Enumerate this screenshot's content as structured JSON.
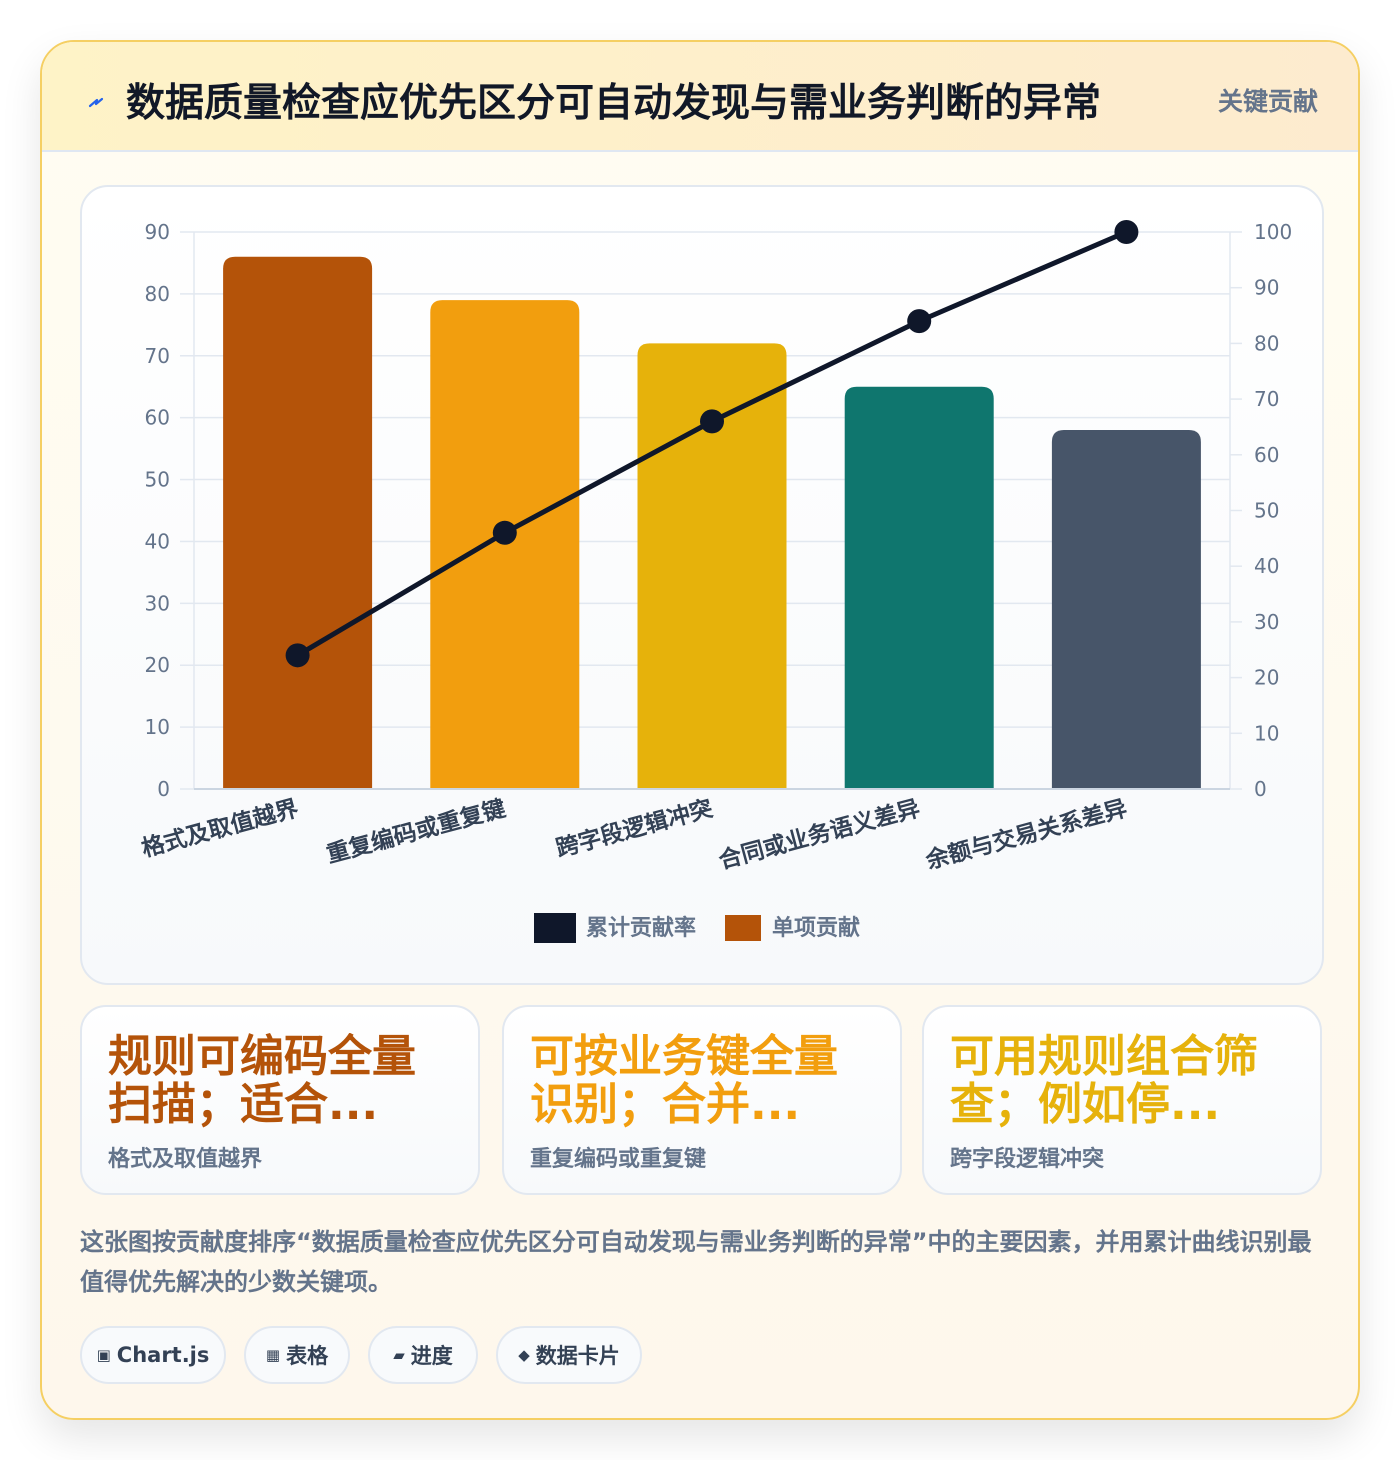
{
  "header": {
    "title": "数据质量检查应优先区分可自动发现与需业务判断的异常",
    "tag": "关键贡献",
    "icon": "bolt-icon"
  },
  "chart_data": {
    "type": "bar",
    "categories": [
      "格式及取值越界",
      "重复编码或重复键",
      "跨字段逻辑冲突",
      "合同或业务语义差异",
      "余额与交易关系差异"
    ],
    "series": [
      {
        "name": "单项贡献",
        "type": "bar",
        "axis": "left",
        "values": [
          86,
          79,
          72,
          65,
          58
        ]
      },
      {
        "name": "累计贡献率",
        "type": "line",
        "axis": "right",
        "values": [
          24,
          46,
          66,
          84,
          100
        ]
      }
    ],
    "y_left": {
      "ylim": [
        0,
        90
      ],
      "ticks": [
        0,
        10,
        20,
        30,
        40,
        50,
        60,
        70,
        80,
        90
      ]
    },
    "y_right": {
      "ylim": [
        0,
        100
      ],
      "ticks": [
        0,
        10,
        20,
        30,
        40,
        50,
        60,
        70,
        80,
        90,
        100
      ]
    },
    "bar_colors": [
      "#b45309",
      "#f29e0e",
      "#e6b20b",
      "#0f766e",
      "#475569"
    ],
    "line_color": "#0f172a",
    "grid": true,
    "legend": [
      {
        "label": "累计贡献率",
        "color": "#0f172a"
      },
      {
        "label": "单项贡献",
        "color": "#b45309"
      }
    ],
    "legend_position": "bottom"
  },
  "stats": [
    {
      "value": "规则可编码全量扫描；适合...",
      "label": "格式及取值越界",
      "color": "#b45309"
    },
    {
      "value": "可按业务键全量识别；合并...",
      "label": "重复编码或重复键",
      "color": "#f29e0e"
    },
    {
      "value": "可用规则组合筛查；例如停...",
      "label": "跨字段逻辑冲突",
      "color": "#e6b20b"
    }
  ],
  "description": "这张图按贡献度排序“数据质量检查应优先区分可自动发现与需业务判断的异常”中的主要因素，并用累计曲线识别最值得优先解决的少数关键项。",
  "pills": [
    {
      "icon": "▣",
      "label": "Chart.js"
    },
    {
      "icon": "▦",
      "label": "表格"
    },
    {
      "icon": "▰",
      "label": "进度"
    },
    {
      "icon": "◆",
      "label": "数据卡片"
    }
  ]
}
